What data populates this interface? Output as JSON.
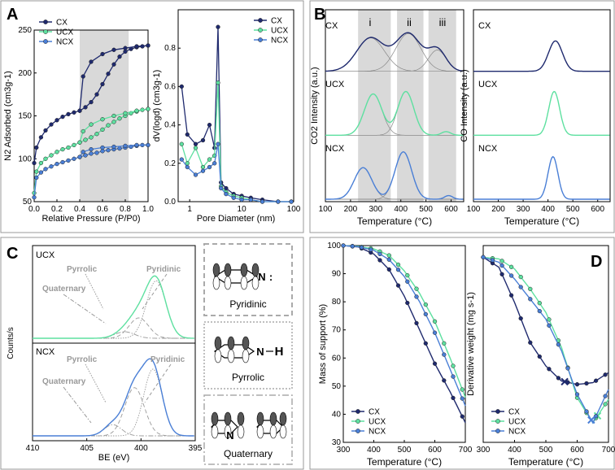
{
  "figure": {
    "panel_labels": [
      "A",
      "B",
      "C",
      "D"
    ]
  },
  "colors": {
    "CX": "#1f2a6e",
    "UCX": "#5ee0a0",
    "NCX": "#4a7fd6",
    "shade": "#d9d9d9",
    "gray_line": "#888888",
    "box": "#999999"
  },
  "series_names": [
    "CX",
    "UCX",
    "NCX"
  ],
  "chart_data": [
    {
      "id": "A1",
      "type": "line",
      "title": "",
      "xlabel": "Relative Pressure (P/P0)",
      "ylabel": "N2 Adsorbed (cm3g-1)",
      "xlim": [
        0.0,
        1.0
      ],
      "ylim": [
        50,
        250
      ],
      "xticks": [
        0.0,
        0.2,
        0.4,
        0.6,
        0.8,
        1.0
      ],
      "xticklabels": [
        "0.0",
        "0.2",
        "0.4",
        "0.6",
        "0.8",
        "1.0"
      ],
      "yticks": [
        50,
        100,
        150,
        200,
        250
      ],
      "shaded_x": [
        0.4,
        0.83
      ],
      "legend": [
        "CX",
        "UCX",
        "NCX"
      ],
      "series": [
        {
          "name": "CX",
          "branch": "adsorption",
          "x": [
            0.0,
            0.02,
            0.06,
            0.1,
            0.15,
            0.2,
            0.25,
            0.3,
            0.35,
            0.4,
            0.45,
            0.5,
            0.55,
            0.6,
            0.65,
            0.7,
            0.75,
            0.8,
            0.85,
            0.9,
            0.95,
            1.0
          ],
          "y": [
            95,
            113,
            125,
            133,
            140,
            145,
            149,
            152,
            154,
            156,
            160,
            166,
            175,
            187,
            199,
            210,
            219,
            225,
            228,
            230,
            231,
            232
          ]
        },
        {
          "name": "CX",
          "branch": "desorption",
          "x": [
            0.4,
            0.43,
            0.5,
            0.6,
            0.7,
            0.8,
            0.9,
            1.0
          ],
          "y": [
            156,
            196,
            213,
            222,
            227,
            229,
            231,
            232
          ]
        },
        {
          "name": "UCX",
          "branch": "adsorption",
          "x": [
            0.0,
            0.02,
            0.06,
            0.1,
            0.15,
            0.2,
            0.25,
            0.3,
            0.35,
            0.4,
            0.45,
            0.5,
            0.55,
            0.6,
            0.65,
            0.7,
            0.75,
            0.8,
            0.85,
            0.9,
            0.95,
            1.0
          ],
          "y": [
            60,
            85,
            95,
            100,
            104,
            108,
            111,
            113,
            116,
            119,
            122,
            125,
            129,
            134,
            139,
            143,
            147,
            150,
            153,
            155,
            157,
            158
          ]
        },
        {
          "name": "UCX",
          "branch": "desorption",
          "x": [
            0.4,
            0.43,
            0.5,
            0.6,
            0.7,
            0.8,
            0.9,
            1.0
          ],
          "y": [
            119,
            132,
            140,
            146,
            150,
            153,
            156,
            158
          ]
        },
        {
          "name": "NCX",
          "branch": "adsorption",
          "x": [
            0.0,
            0.02,
            0.06,
            0.1,
            0.15,
            0.2,
            0.25,
            0.3,
            0.35,
            0.4,
            0.45,
            0.5,
            0.55,
            0.6,
            0.65,
            0.7,
            0.75,
            0.8,
            0.85,
            0.9,
            0.95,
            1.0
          ],
          "y": [
            55,
            78,
            84,
            88,
            91,
            94,
            96,
            98,
            100,
            102,
            104,
            106,
            107,
            109,
            110,
            111,
            112,
            113,
            114,
            115,
            116,
            116
          ]
        },
        {
          "name": "NCX",
          "branch": "desorption",
          "x": [
            0.4,
            0.43,
            0.5,
            0.6,
            0.7,
            0.8,
            0.9,
            1.0
          ],
          "y": [
            102,
            108,
            111,
            113,
            114,
            115,
            116,
            116
          ]
        }
      ]
    },
    {
      "id": "A2",
      "type": "line",
      "title": "",
      "xlabel": "Pore Diameter (nm)",
      "ylabel": "dV(logd) (cm3g-1)",
      "xscale": "log",
      "xlim": [
        0.6,
        100
      ],
      "ylim": [
        0.0,
        1.0
      ],
      "xticks": [
        1,
        10,
        100
      ],
      "xticklabels": [
        "1",
        "10",
        "100"
      ],
      "yticks": [
        0.0,
        0.2,
        0.4,
        0.6,
        0.8
      ],
      "yticklabels": [
        "0.0",
        "0.2",
        "0.4",
        "0.6",
        "0.8"
      ],
      "legend": [
        "CX",
        "UCX",
        "NCX"
      ],
      "series": [
        {
          "name": "CX",
          "x": [
            0.7,
            0.9,
            1.3,
            1.8,
            2.4,
            3.0,
            3.5,
            4.0,
            5.0,
            7.0,
            10,
            15,
            25,
            50,
            90
          ],
          "y": [
            0.6,
            0.35,
            0.3,
            0.32,
            0.4,
            0.28,
            0.91,
            0.1,
            0.07,
            0.04,
            0.03,
            0.02,
            0.01,
            0.0,
            0.0
          ]
        },
        {
          "name": "UCX",
          "x": [
            0.7,
            0.9,
            1.3,
            1.8,
            2.4,
            3.0,
            3.5,
            4.0,
            5.0,
            7.0,
            10,
            15,
            25,
            50,
            90
          ],
          "y": [
            0.3,
            0.2,
            0.28,
            0.18,
            0.22,
            0.24,
            0.62,
            0.08,
            0.05,
            0.03,
            0.02,
            0.01,
            0.0,
            0.0,
            0.0
          ]
        },
        {
          "name": "NCX",
          "x": [
            0.7,
            0.9,
            1.3,
            1.8,
            2.4,
            3.0,
            3.5,
            4.0,
            5.0,
            7.0,
            10,
            15,
            25,
            50,
            90
          ],
          "y": [
            0.22,
            0.18,
            0.14,
            0.16,
            0.18,
            0.2,
            0.3,
            0.07,
            0.04,
            0.02,
            0.01,
            0.01,
            0.0,
            0.0,
            0.0
          ]
        }
      ]
    },
    {
      "id": "B1",
      "type": "line",
      "title": "",
      "xlabel": "Temperature (°C)",
      "ylabel": "CO2 Intensity (a.u.)",
      "xlim": [
        100,
        650
      ],
      "xticks": [
        100,
        200,
        300,
        400,
        500,
        600
      ],
      "shaded_regions": [
        {
          "label": "i",
          "x": [
            230,
            360
          ]
        },
        {
          "label": "ii",
          "x": [
            385,
            490
          ]
        },
        {
          "label": "iii",
          "x": [
            510,
            620
          ]
        }
      ],
      "series": [
        {
          "name": "CX",
          "offset": 2,
          "peaks": [
            {
              "center": 280,
              "height": 0.55,
              "width": 55
            },
            {
              "center": 430,
              "height": 0.62,
              "width": 50
            },
            {
              "center": 545,
              "height": 0.35,
              "width": 35
            }
          ]
        },
        {
          "name": "UCX",
          "offset": 1,
          "peaks": [
            {
              "center": 290,
              "height": 0.68,
              "width": 35
            },
            {
              "center": 420,
              "height": 0.72,
              "width": 32
            },
            {
              "center": 580,
              "height": 0.06,
              "width": 18
            }
          ]
        },
        {
          "name": "NCX",
          "offset": 0,
          "peaks": [
            {
              "center": 250,
              "height": 0.52,
              "width": 35
            },
            {
              "center": 410,
              "height": 0.78,
              "width": 33
            },
            {
              "center": 590,
              "height": 0.06,
              "width": 16
            }
          ]
        }
      ]
    },
    {
      "id": "B2",
      "type": "line",
      "title": "",
      "xlabel": "Temperature (°C)",
      "ylabel": "CO Intensity (a.u.)",
      "xlim": [
        100,
        650
      ],
      "xticks": [
        100,
        200,
        300,
        400,
        500,
        600
      ],
      "series": [
        {
          "name": "CX",
          "offset": 2,
          "peaks": [
            {
              "center": 430,
              "height": 0.5,
              "width": 28
            }
          ]
        },
        {
          "name": "UCX",
          "offset": 1,
          "peaks": [
            {
              "center": 425,
              "height": 0.72,
              "width": 22
            }
          ]
        },
        {
          "name": "NCX",
          "offset": 0,
          "peaks": [
            {
              "center": 420,
              "height": 0.7,
              "width": 20
            }
          ]
        }
      ]
    },
    {
      "id": "C",
      "type": "line",
      "title": "",
      "xlabel": "BE (eV)",
      "ylabel": "Counts/s",
      "xlim": [
        410,
        395
      ],
      "xticks": [
        410,
        405,
        400,
        395
      ],
      "series": [
        {
          "name": "UCX",
          "offset": 1,
          "envelope": true,
          "peaks": [
            {
              "center": 398.6,
              "height": 0.62,
              "width": 0.9
            },
            {
              "center": 400.2,
              "height": 0.22,
              "width": 0.9
            },
            {
              "center": 401.5,
              "height": 0.07,
              "width": 0.9
            }
          ]
        },
        {
          "name": "NCX",
          "offset": 0,
          "envelope": true,
          "peaks": [
            {
              "center": 398.9,
              "height": 0.72,
              "width": 0.85
            },
            {
              "center": 400.6,
              "height": 0.52,
              "width": 0.9
            },
            {
              "center": 402.6,
              "height": 0.12,
              "width": 0.8
            }
          ]
        }
      ],
      "annotations": [
        {
          "panel": "UCX",
          "labels": [
            "Pyrrolic",
            "Pyridinic",
            "Quaternary"
          ]
        },
        {
          "panel": "NCX",
          "labels": [
            "Pyrrolic",
            "Pyridinic",
            "Quaternary"
          ]
        }
      ]
    },
    {
      "id": "D1",
      "type": "line",
      "title": "",
      "xlabel": "Temperature (°C)",
      "ylabel": "Mass of support (%)",
      "xlim": [
        300,
        700
      ],
      "ylim": [
        30,
        100
      ],
      "xticks": [
        300,
        400,
        500,
        600,
        700
      ],
      "yticks": [
        30,
        40,
        50,
        60,
        70,
        80,
        90,
        100
      ],
      "legend": [
        "CX",
        "UCX",
        "NCX"
      ],
      "series": [
        {
          "name": "CX",
          "x": [
            300,
            350,
            400,
            450,
            500,
            550,
            600,
            650,
            700
          ],
          "y": [
            100,
            99.5,
            97,
            91.5,
            82,
            70,
            58,
            48,
            37
          ]
        },
        {
          "name": "UCX",
          "x": [
            300,
            350,
            400,
            450,
            500,
            550,
            600,
            650,
            700
          ],
          "y": [
            100,
            99.7,
            98.8,
            96.5,
            91,
            83,
            73,
            60,
            46
          ]
        },
        {
          "name": "NCX",
          "x": [
            300,
            350,
            400,
            450,
            500,
            550,
            600,
            650,
            700
          ],
          "y": [
            100,
            99.6,
            98.3,
            95,
            89,
            80,
            69,
            56,
            43
          ]
        }
      ]
    },
    {
      "id": "D2",
      "type": "line",
      "title": "",
      "xlabel": "Temperature (°C)",
      "ylabel": "Derivative weight (mg s-1)",
      "xlim": [
        300,
        700
      ],
      "xticks": [
        300,
        400,
        500,
        600,
        700
      ],
      "legend": [
        "CX",
        "UCX",
        "NCX"
      ],
      "series": [
        {
          "name": "CX",
          "x": [
            300,
            350,
            400,
            450,
            500,
            550,
            600,
            650,
            700
          ],
          "y": [
            0.99,
            0.93,
            0.72,
            0.48,
            0.34,
            0.25,
            0.23,
            0.24,
            0.3
          ],
          "marker_x": 560
        },
        {
          "name": "UCX",
          "x": [
            300,
            350,
            400,
            450,
            500,
            550,
            600,
            650,
            700
          ],
          "y": [
            0.99,
            0.98,
            0.92,
            0.8,
            0.66,
            0.45,
            0.15,
            0.0,
            0.14
          ],
          "marker_x": 665
        },
        {
          "name": "NCX",
          "x": [
            300,
            350,
            400,
            450,
            500,
            550,
            600,
            650,
            700
          ],
          "y": [
            0.99,
            0.96,
            0.86,
            0.74,
            0.62,
            0.43,
            0.17,
            0.0,
            0.2
          ],
          "marker_x": 645
        }
      ]
    }
  ],
  "panel_B": {
    "region_labels": [
      "i",
      "ii",
      "iii"
    ],
    "sample_labels": [
      "CX",
      "UCX",
      "NCX"
    ]
  },
  "panel_C": {
    "sample_labels": [
      "UCX",
      "NCX"
    ],
    "annot": {
      "pyrrolic": "Pyrrolic",
      "pyridinic": "Pyridinic",
      "quaternary": "Quaternary"
    },
    "structures": [
      {
        "label": "Pyridinic",
        "atom": "N",
        "suffix": ":"
      },
      {
        "label": "Pyrrolic",
        "atom": "N",
        "suffix": "H"
      },
      {
        "label": "Quaternary",
        "atom": "N",
        "suffix": ""
      }
    ]
  }
}
